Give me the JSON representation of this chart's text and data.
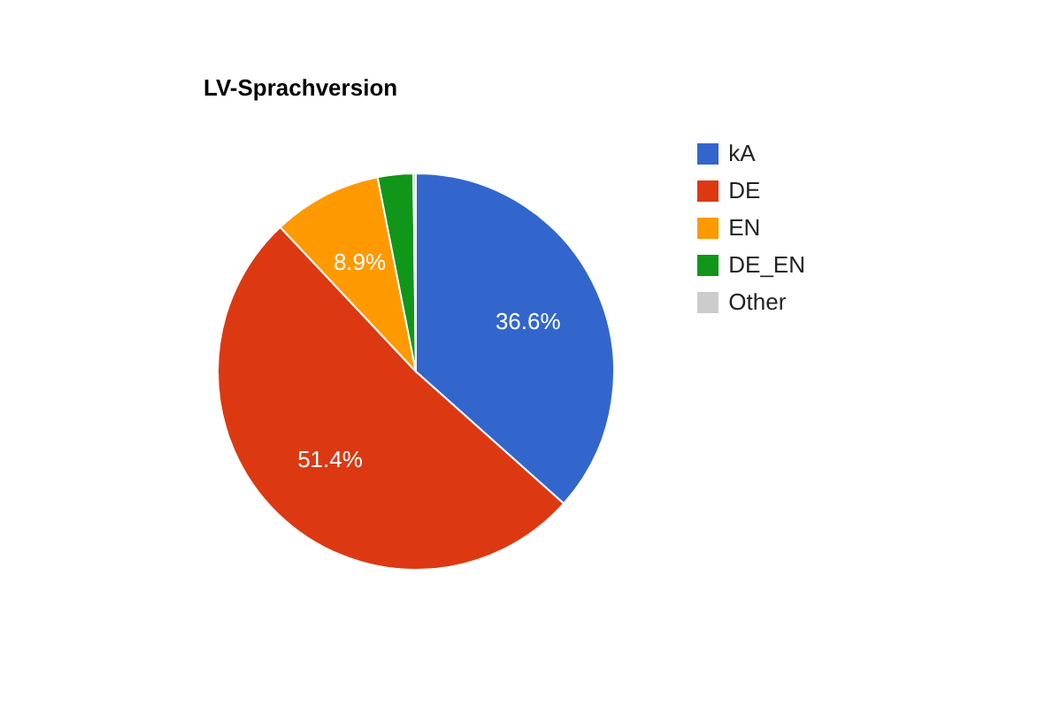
{
  "chart_data": {
    "type": "pie",
    "title": "LV-Sprachversion",
    "categories": [
      "kA",
      "DE",
      "EN",
      "DE_EN",
      "Other"
    ],
    "values": [
      36.6,
      51.4,
      8.9,
      2.9,
      0.2
    ],
    "colors": [
      "#3366cc",
      "#dc3912",
      "#ff9900",
      "#109618",
      "#cccccc"
    ],
    "value_labels": [
      "36.6%",
      "51.4%",
      "8.9%",
      null,
      null
    ],
    "legend": "top right"
  }
}
